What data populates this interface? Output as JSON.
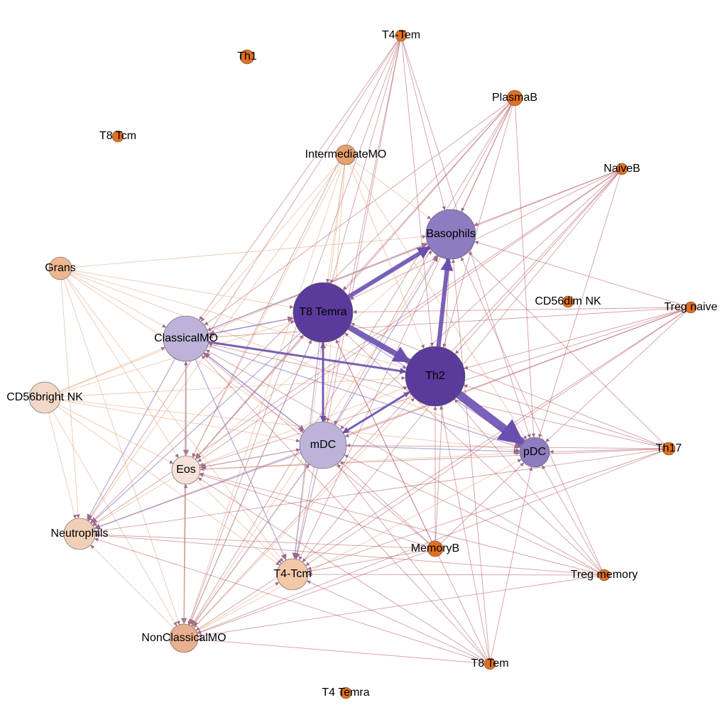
{
  "nodes": [
    {
      "label": "Th1"
    },
    {
      "label": "T4-Tem"
    },
    {
      "label": "PlasmaB"
    },
    {
      "label": "T8 Tcm"
    },
    {
      "label": "IntermediateMO"
    },
    {
      "label": "NaiveB"
    },
    {
      "label": "Basophils"
    },
    {
      "label": "Grans"
    },
    {
      "label": "T8 Temra"
    },
    {
      "label": "CD56dim NK"
    },
    {
      "label": "Treg naive"
    },
    {
      "label": "ClassicalMO"
    },
    {
      "label": "Th2"
    },
    {
      "label": "CD56bright NK"
    },
    {
      "label": "mDC"
    },
    {
      "label": "pDC"
    },
    {
      "label": "Th17"
    },
    {
      "label": "Eos"
    },
    {
      "label": "Neutrophils"
    },
    {
      "label": "MemoryB"
    },
    {
      "label": "Treg memory"
    },
    {
      "label": "T4-Tcm"
    },
    {
      "label": "NonClassicalMO"
    },
    {
      "label": "T8 Tem"
    },
    {
      "label": "T4 Temra"
    }
  ]
}
